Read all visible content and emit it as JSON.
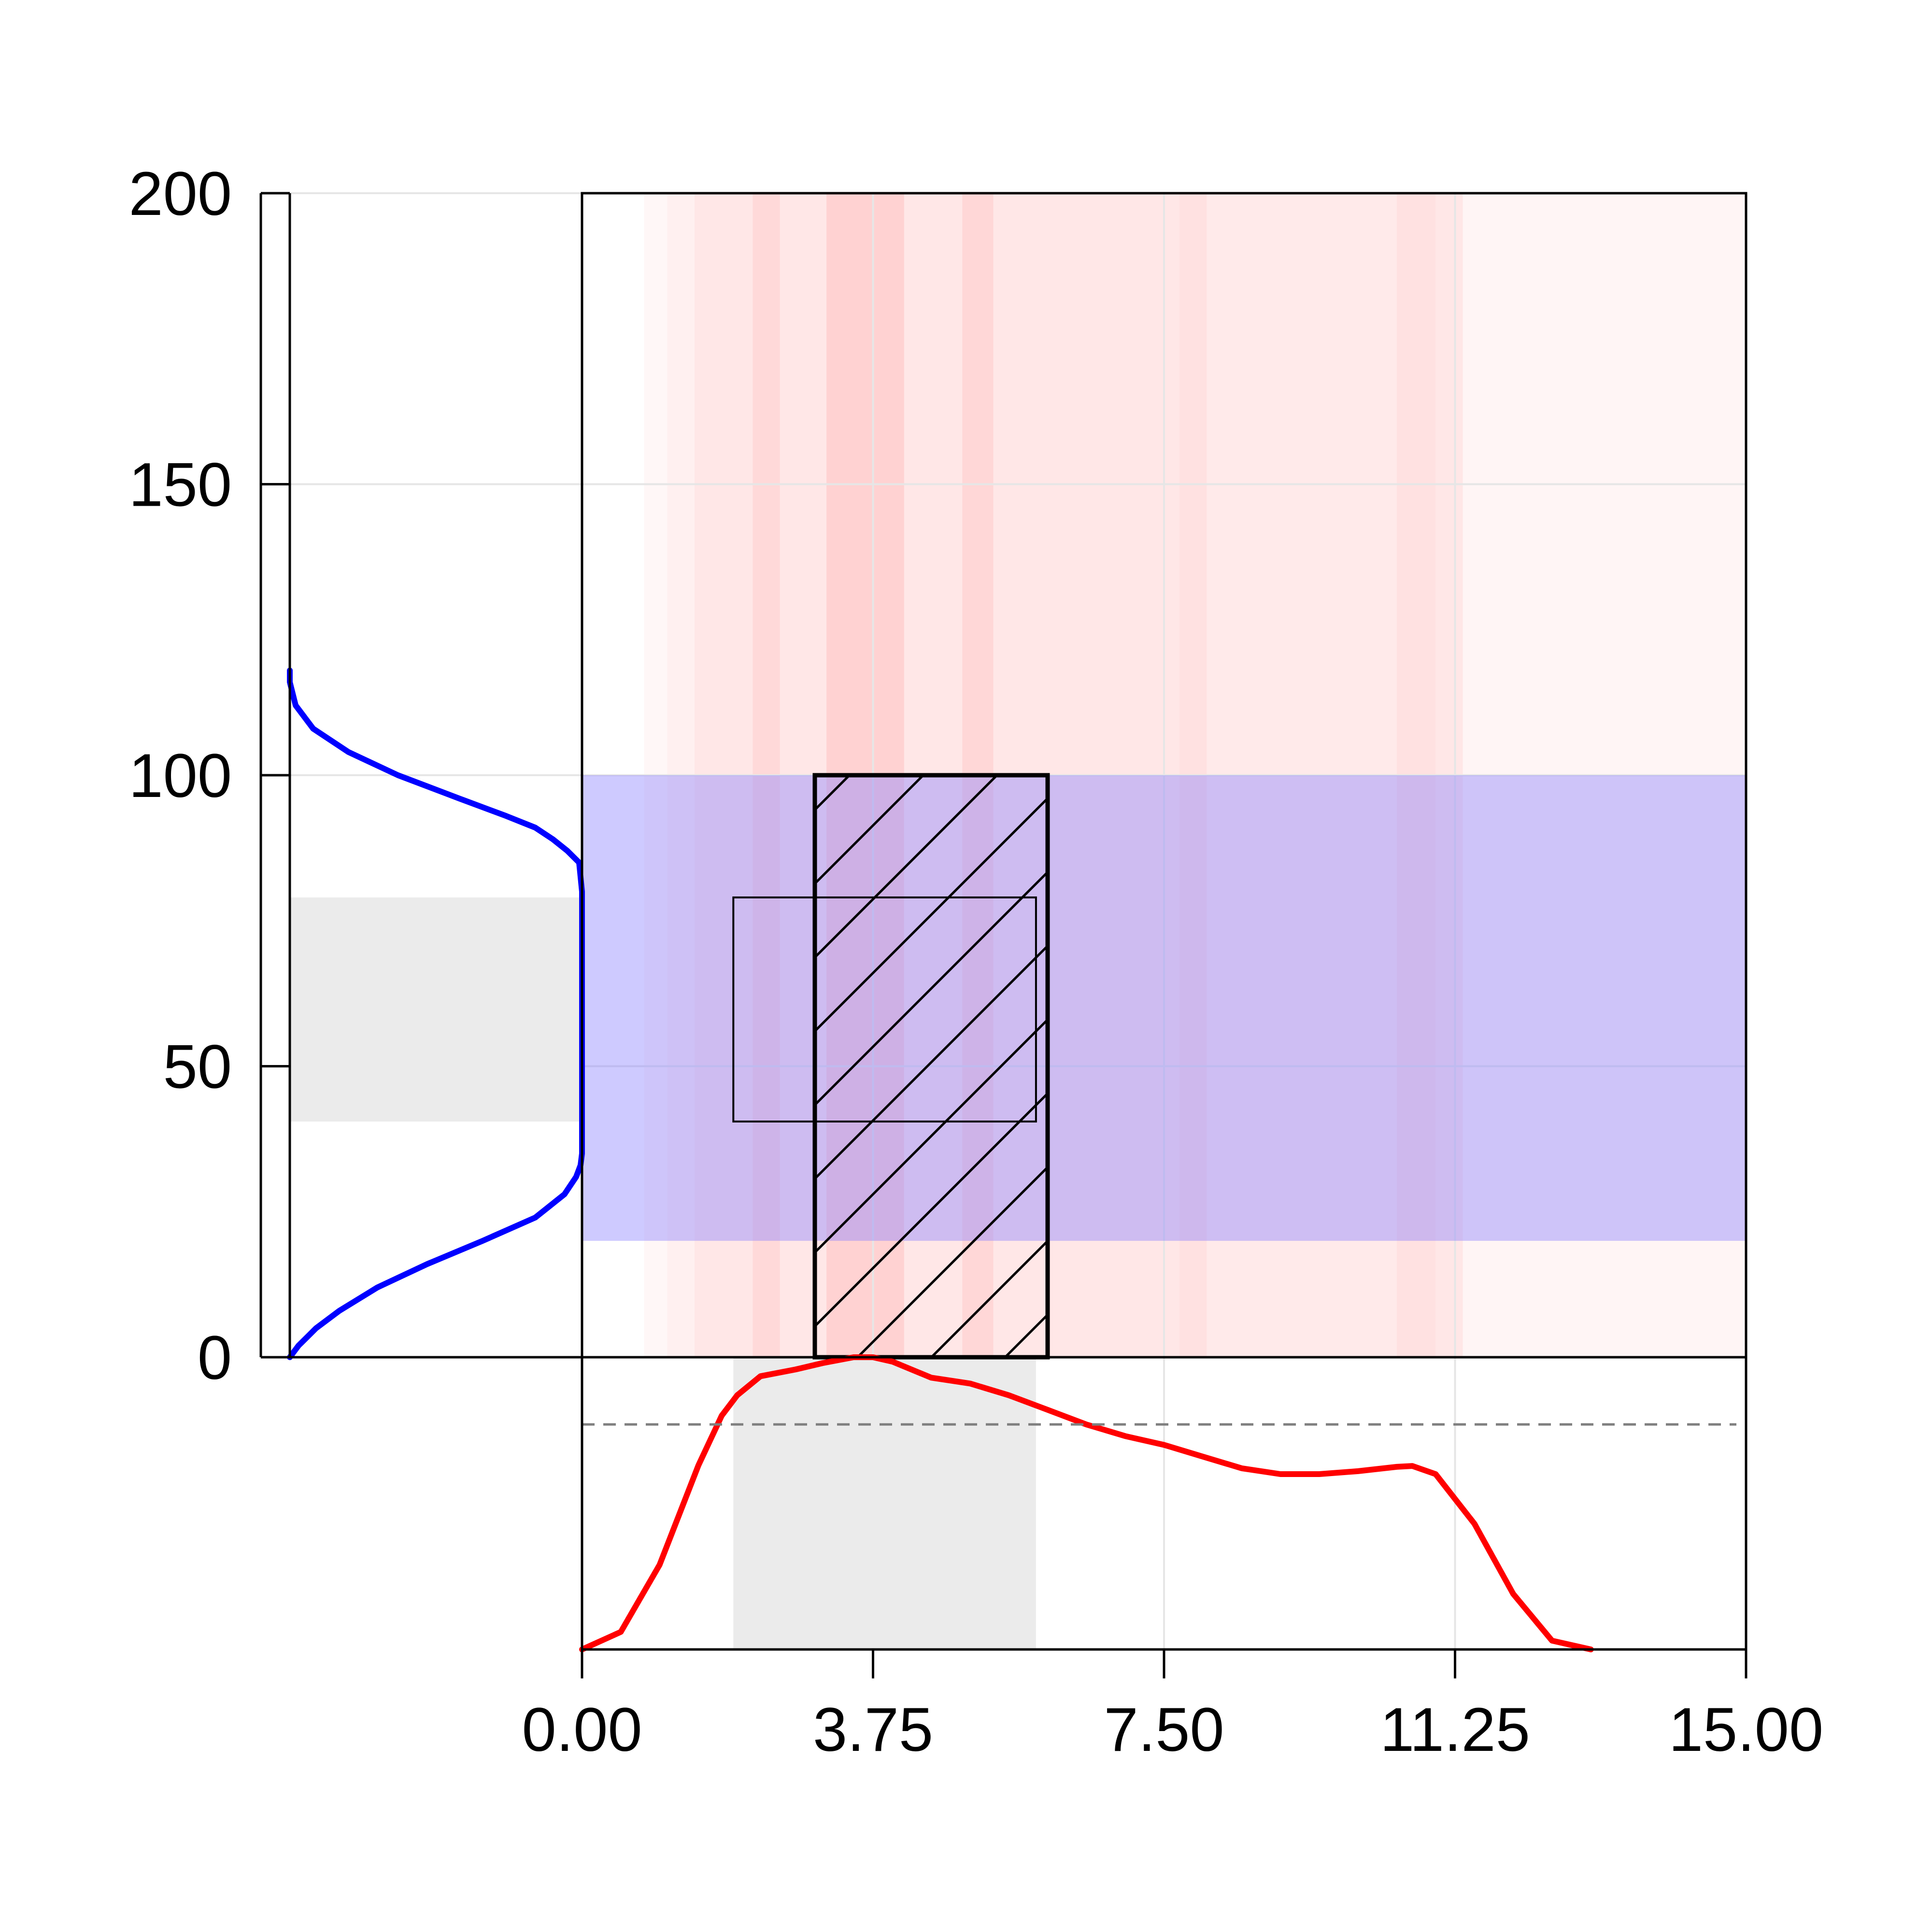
{
  "chart_data": {
    "type": "area",
    "title": "",
    "xlabel": "",
    "ylabel": "",
    "xlim": [
      0,
      15
    ],
    "ylim": [
      0,
      200
    ],
    "x_ticks": [
      "0.00",
      "3.75",
      "7.50",
      "11.25",
      "15.00"
    ],
    "y_ticks": [
      "0",
      "50",
      "100",
      "150",
      "200"
    ],
    "grid": true,
    "colors": {
      "x_density": "#ff0000",
      "y_density": "#0000ff",
      "y_range_band": "#c8c4f6",
      "interval_shade": "#ebebeb",
      "x_strip_tint": "#ff6b6b",
      "frame": "#000000",
      "grid": "#e6e6e6",
      "reference_line": "#7f7f7f"
    },
    "y_range_band": [
      20,
      100
    ],
    "hatched_box": {
      "x_range": [
        3,
        6
      ],
      "y_range": [
        0,
        100
      ]
    },
    "thin_box": {
      "x_range": [
        1.95,
        5.85
      ],
      "y_range": [
        40.5,
        79
      ]
    },
    "x_interval": [
      1.95,
      5.85
    ],
    "y_interval": [
      40.5,
      79
    ],
    "reference_level": 0.77,
    "x_density": {
      "x": [
        0,
        0.5,
        1,
        1.5,
        1.8,
        2.0,
        2.3,
        2.75,
        3.1,
        3.5,
        3.75,
        4.0,
        4.5,
        5.0,
        5.5,
        6.0,
        6.5,
        7.0,
        7.5,
        8.0,
        8.5,
        9.0,
        9.5,
        10.0,
        10.5,
        10.7,
        11.0,
        11.5,
        12.0,
        12.5,
        13.0
      ],
      "y": [
        0,
        0.06,
        0.29,
        0.63,
        0.8,
        0.87,
        0.935,
        0.958,
        0.98,
        1.0,
        1.0,
        0.985,
        0.93,
        0.91,
        0.87,
        0.82,
        0.77,
        0.73,
        0.7,
        0.66,
        0.62,
        0.6,
        0.6,
        0.61,
        0.625,
        0.628,
        0.6,
        0.43,
        0.19,
        0.03,
        0.0
      ]
    },
    "y_density": {
      "y": [
        0,
        2,
        5,
        8,
        12,
        16,
        20,
        24,
        28,
        31,
        33,
        35,
        38,
        40,
        50,
        60,
        70,
        80,
        85,
        87,
        89,
        91,
        93,
        96,
        100,
        104,
        108,
        112,
        116,
        118
      ],
      "w": [
        0.0,
        0.03,
        0.09,
        0.17,
        0.3,
        0.47,
        0.66,
        0.84,
        0.94,
        0.98,
        0.995,
        1.0,
        1.0,
        1.0,
        1.0,
        1.0,
        1.0,
        1.0,
        0.99,
        0.95,
        0.9,
        0.84,
        0.74,
        0.58,
        0.37,
        0.2,
        0.08,
        0.02,
        0.0,
        0.0
      ]
    },
    "x_strips": [
      {
        "x": [
          0.8,
          1.1
        ],
        "alpha": 0.05
      },
      {
        "x": [
          1.1,
          1.45
        ],
        "alpha": 0.1
      },
      {
        "x": [
          1.45,
          2.2
        ],
        "alpha": 0.16
      },
      {
        "x": [
          2.2,
          2.55
        ],
        "alpha": 0.26
      },
      {
        "x": [
          2.55,
          3.15
        ],
        "alpha": 0.16
      },
      {
        "x": [
          3.15,
          4.15
        ],
        "alpha": 0.3
      },
      {
        "x": [
          4.15,
          4.9
        ],
        "alpha": 0.16
      },
      {
        "x": [
          4.9,
          5.3
        ],
        "alpha": 0.27
      },
      {
        "x": [
          5.3,
          7.7
        ],
        "alpha": 0.16
      },
      {
        "x": [
          7.7,
          8.05
        ],
        "alpha": 0.2
      },
      {
        "x": [
          8.05,
          10.5
        ],
        "alpha": 0.14
      },
      {
        "x": [
          10.5,
          11.0
        ],
        "alpha": 0.2
      },
      {
        "x": [
          11.0,
          11.35
        ],
        "alpha": 0.16
      },
      {
        "x": [
          11.35,
          15.0
        ],
        "alpha": 0.07
      }
    ]
  }
}
